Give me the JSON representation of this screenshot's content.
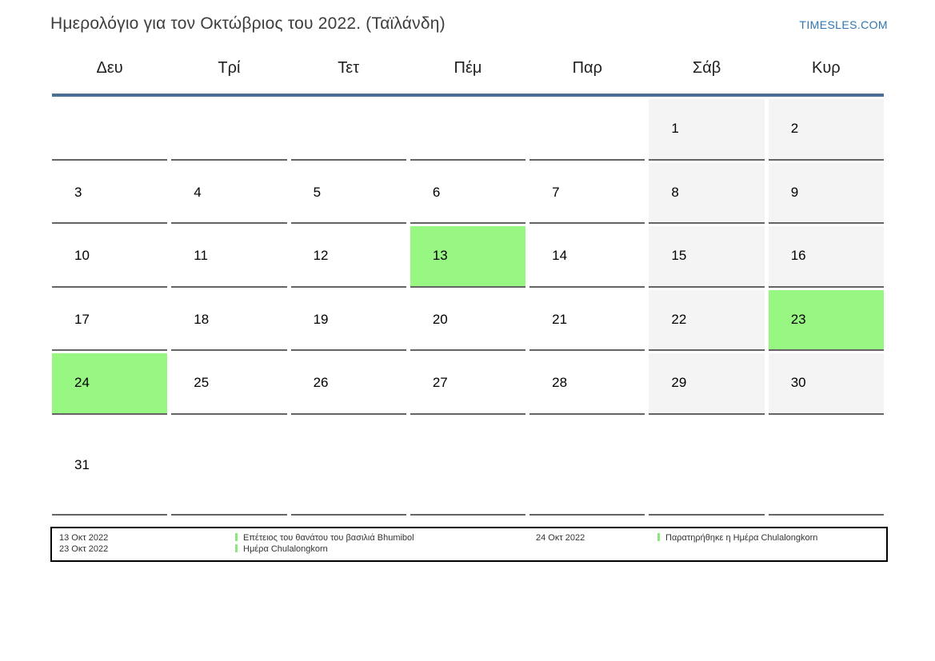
{
  "header": {
    "title": "Ημερολόγιο για τον Οκτώβριος του 2022. (Ταϊλάνδη)",
    "site_link": "TIMESLES.COM"
  },
  "calendar": {
    "weekday_headers": [
      "Δευ",
      "Τρί",
      "Τετ",
      "Πέμ",
      "Παρ",
      "Σάβ",
      "Κυρ"
    ],
    "weeks": [
      [
        "",
        "",
        "",
        "",
        "",
        "1",
        "2"
      ],
      [
        "3",
        "4",
        "5",
        "6",
        "7",
        "8",
        "9"
      ],
      [
        "10",
        "11",
        "12",
        "13",
        "14",
        "15",
        "16"
      ],
      [
        "17",
        "18",
        "19",
        "20",
        "21",
        "22",
        "23"
      ],
      [
        "24",
        "25",
        "26",
        "27",
        "28",
        "29",
        "30"
      ],
      [
        "31",
        "",
        "",
        "",
        "",
        "",
        ""
      ]
    ],
    "highlighted_days": [
      13,
      23,
      24
    ],
    "weekend_columns": [
      5,
      6
    ],
    "colors": {
      "highlight_green": "#98f683",
      "weekend_bg": "#f4f4f4",
      "header_rule_blue": "#4c6f97",
      "cell_underline": "#646464",
      "link_blue": "#2e75b6",
      "legend_bar_green": "#8ce87e"
    }
  },
  "legend": {
    "left": {
      "dates": [
        "13 Οκτ 2022",
        "23 Οκτ 2022"
      ],
      "events": [
        "Επέτειος του θανάτου του βασιλιά Bhumibol",
        "Ημέρα Chulalongkorn"
      ]
    },
    "right": {
      "dates": [
        "24 Οκτ 2022"
      ],
      "events": [
        "Παρατηρήθηκε η Ημέρα Chulalongkorn"
      ]
    }
  }
}
